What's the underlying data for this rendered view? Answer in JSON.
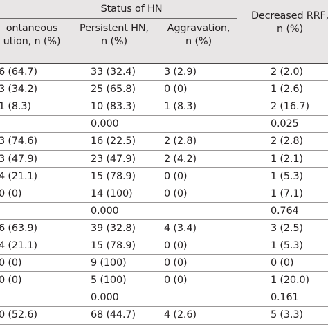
{
  "header": {
    "status_of_hn": "Status of HN",
    "decreased_rrf_line1": "Decreased RRF,",
    "decreased_rrf_line2": "n (%)",
    "col1_line1": "ontaneous",
    "col1_line2": "ution, n (%)",
    "col2_line1": "Persistent HN,",
    "col2_line2": "n (%)",
    "col3_line1": "Aggravation,",
    "col3_line2": "n (%)"
  },
  "rows": [
    {
      "c1": "6 (64.7)",
      "c2": "33 (32.4)",
      "c3": "3 (2.9)",
      "c4": "2 (2.0)"
    },
    {
      "c1": "3 (34.2)",
      "c2": "25 (65.8)",
      "c3": "0 (0)",
      "c4": "1 (2.6)"
    },
    {
      "c1": "1 (8.3)",
      "c2": "10 (83.3)",
      "c3": "1 (8.3)",
      "c4": "2 (16.7)"
    },
    {
      "c1": "",
      "c2": "0.000",
      "c3": "",
      "c4": "0.025"
    },
    {
      "c1": "3 (74.6)",
      "c2": "16 (22.5)",
      "c3": "2 (2.8)",
      "c4": "2 (2.8)"
    },
    {
      "c1": "3 (47.9)",
      "c2": "23 (47.9)",
      "c3": "2 (4.2)",
      "c4": "1 (2.1)"
    },
    {
      "c1": "4 (21.1)",
      "c2": "15 (78.9)",
      "c3": "0 (0)",
      "c4": "1 (5.3)"
    },
    {
      "c1": "0 (0)",
      "c2": "14 (100)",
      "c3": "0 (0)",
      "c4": "1 (7.1)"
    },
    {
      "c1": "",
      "c2": "0.000",
      "c3": "",
      "c4": "0.764"
    },
    {
      "c1": "6 (63.9)",
      "c2": "39 (32.8)",
      "c3": "4 (3.4)",
      "c4": "3 (2.5)"
    },
    {
      "c1": "4 (21.1)",
      "c2": "15 (78.9)",
      "c3": "0 (0)",
      "c4": "1 (5.3)"
    },
    {
      "c1": "0 (0)",
      "c2": "9 (100)",
      "c3": "0 (0)",
      "c4": "0 (0)"
    },
    {
      "c1": "0 (0)",
      "c2": "5 (100)",
      "c3": "0 (0)",
      "c4": "1 (20.0)"
    },
    {
      "c1": "",
      "c2": "0.000",
      "c3": "",
      "c4": "0.161"
    },
    {
      "c1": "0 (52.6)",
      "c2": "68 (44.7)",
      "c3": "4 (2.6)",
      "c4": "5 (3.3)"
    }
  ]
}
